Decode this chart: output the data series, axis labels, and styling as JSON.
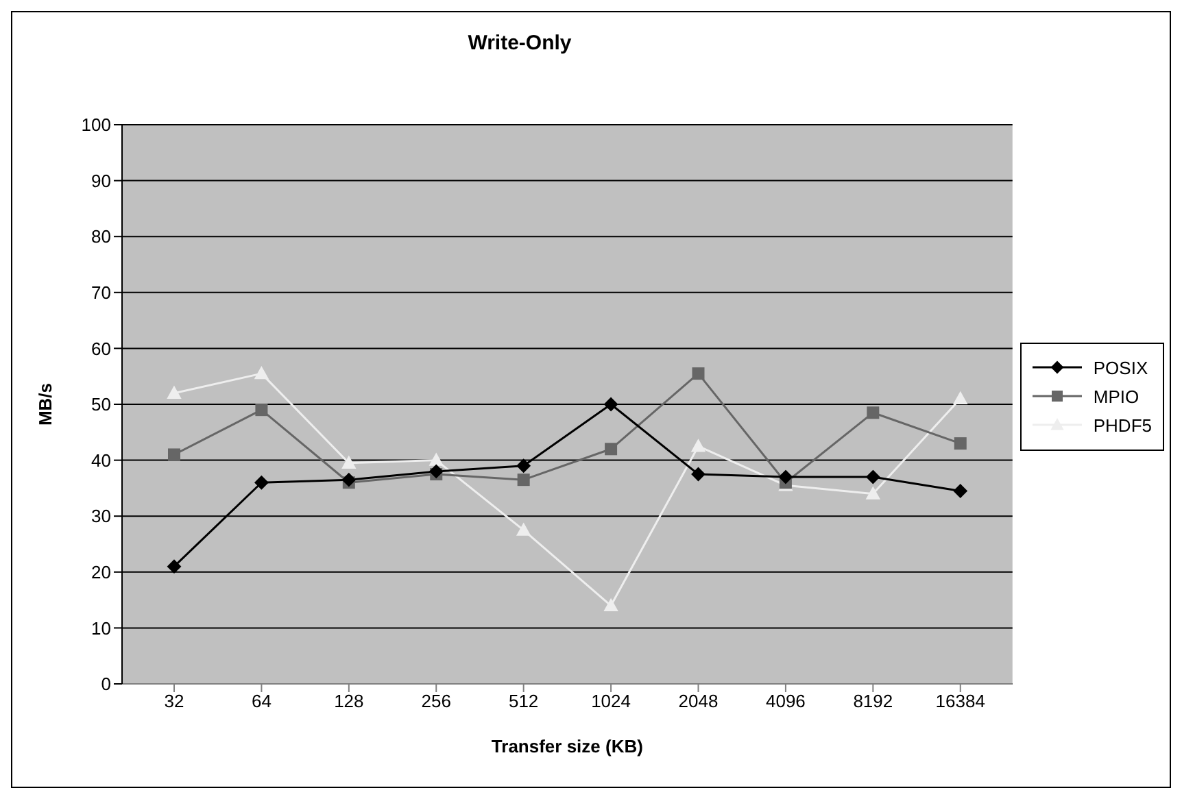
{
  "chart_data": {
    "type": "line",
    "title": "Write-Only",
    "xlabel": "Transfer size (KB)",
    "ylabel": "MB/s",
    "categories": [
      "32",
      "64",
      "128",
      "256",
      "512",
      "1024",
      "2048",
      "4096",
      "8192",
      "16384"
    ],
    "series": [
      {
        "name": "POSIX",
        "color": "#000000",
        "marker": "diamond",
        "values": [
          21,
          36,
          36.5,
          38,
          39,
          50,
          37.5,
          37,
          37,
          34.5
        ]
      },
      {
        "name": "MPIO",
        "color": "#666666",
        "marker": "square",
        "values": [
          41,
          49,
          36,
          37.5,
          36.5,
          42,
          55.5,
          36,
          48.5,
          43
        ]
      },
      {
        "name": "PHDF5",
        "color": "#eeeeee",
        "marker": "triangle",
        "values": [
          52,
          55.5,
          39.5,
          40,
          27.5,
          14,
          42.5,
          35.5,
          34,
          51
        ]
      }
    ],
    "ylim": [
      0,
      100
    ],
    "yticks": [
      0,
      10,
      20,
      30,
      40,
      50,
      60,
      70,
      80,
      90,
      100
    ],
    "grid": "y",
    "legend": "right"
  }
}
